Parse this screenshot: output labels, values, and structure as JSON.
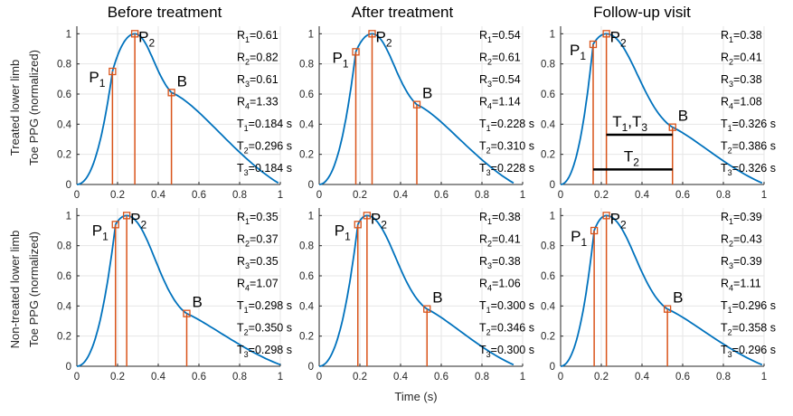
{
  "figure": {
    "xlabel": "Time (s)",
    "columns": [
      "Before treatment",
      "After treatment",
      "Follow-up visit"
    ],
    "row_labels": [
      [
        "Treated lower limb",
        "Toe PPG (normalized)"
      ],
      [
        "Non-treated lower limb",
        "Toe PPG (normalized)"
      ]
    ]
  },
  "chart_data": [
    {
      "type": "line",
      "row": 0,
      "col": 0,
      "title": "Before treatment",
      "xlim": [
        0,
        1
      ],
      "ylim": [
        0,
        1.05
      ],
      "xticks": [
        0,
        0.2,
        0.4,
        0.6,
        0.8,
        1
      ],
      "yticks": [
        0,
        0.2,
        0.4,
        0.6,
        0.8,
        1
      ],
      "grid": true,
      "line_color": "#0072BD",
      "marker_color": "#D95319",
      "keypoints": [
        {
          "name": "P",
          "sub": "1",
          "x": 0.175,
          "y": 0.75
        },
        {
          "name": "P",
          "sub": "2",
          "x": 0.285,
          "y": 1.0
        },
        {
          "name": "B",
          "sub": "",
          "x": 0.465,
          "y": 0.61
        }
      ],
      "end_x": 0.99,
      "annotations": [
        {
          "name": "R",
          "sub": "1",
          "value": "=0.61"
        },
        {
          "name": "R",
          "sub": "2",
          "value": "=0.82"
        },
        {
          "name": "R",
          "sub": "3",
          "value": "=0.61"
        },
        {
          "name": "R",
          "sub": "4",
          "value": "=1.33"
        },
        {
          "name": "T",
          "sub": "1",
          "value": "=0.184 s"
        },
        {
          "name": "T",
          "sub": "2",
          "value": "=0.296 s"
        },
        {
          "name": "T",
          "sub": "3",
          "value": "=0.184 s"
        }
      ]
    },
    {
      "type": "line",
      "row": 0,
      "col": 1,
      "title": "After treatment",
      "xlim": [
        0,
        1
      ],
      "ylim": [
        0,
        1.05
      ],
      "xticks": [
        0,
        0.2,
        0.4,
        0.6,
        0.8,
        1
      ],
      "yticks": [
        0,
        0.2,
        0.4,
        0.6,
        0.8,
        1
      ],
      "grid": true,
      "line_color": "#0072BD",
      "marker_color": "#D95319",
      "keypoints": [
        {
          "name": "P",
          "sub": "1",
          "x": 0.18,
          "y": 0.88
        },
        {
          "name": "P",
          "sub": "2",
          "x": 0.26,
          "y": 1.0
        },
        {
          "name": "B",
          "sub": "",
          "x": 0.48,
          "y": 0.53
        }
      ],
      "end_x": 0.955,
      "annotations": [
        {
          "name": "R",
          "sub": "1",
          "value": "=0.54"
        },
        {
          "name": "R",
          "sub": "2",
          "value": "=0.61"
        },
        {
          "name": "R",
          "sub": "3",
          "value": "=0.54"
        },
        {
          "name": "R",
          "sub": "4",
          "value": "=1.14"
        },
        {
          "name": "T",
          "sub": "1",
          "value": "=0.228 s"
        },
        {
          "name": "T",
          "sub": "2",
          "value": "=0.310 s"
        },
        {
          "name": "T",
          "sub": "3",
          "value": "=0.228 s"
        }
      ]
    },
    {
      "type": "line",
      "row": 0,
      "col": 2,
      "title": "Follow-up visit",
      "xlim": [
        0,
        1
      ],
      "ylim": [
        0,
        1.05
      ],
      "xticks": [
        0,
        0.2,
        0.4,
        0.6,
        0.8,
        1
      ],
      "yticks": [
        0,
        0.2,
        0.4,
        0.6,
        0.8,
        1
      ],
      "grid": true,
      "line_color": "#0072BD",
      "marker_color": "#D95319",
      "keypoints": [
        {
          "name": "P",
          "sub": "1",
          "x": 0.16,
          "y": 0.93
        },
        {
          "name": "P",
          "sub": "2",
          "x": 0.225,
          "y": 1.0
        },
        {
          "name": "B",
          "sub": "",
          "x": 0.55,
          "y": 0.38
        }
      ],
      "end_x": 0.99,
      "intervals": [
        {
          "name": "T",
          "sub": "1",
          "name2": "T",
          "sub2": "3",
          "x0": 0.225,
          "x1": 0.55,
          "y": 0.33
        },
        {
          "name": "T",
          "sub": "2",
          "x0": 0.16,
          "x1": 0.55,
          "y": 0.1
        }
      ],
      "annotations": [
        {
          "name": "R",
          "sub": "1",
          "value": "=0.38"
        },
        {
          "name": "R",
          "sub": "2",
          "value": "=0.41"
        },
        {
          "name": "R",
          "sub": "3",
          "value": "=0.38"
        },
        {
          "name": "R",
          "sub": "4",
          "value": "=1.08"
        },
        {
          "name": "T",
          "sub": "1",
          "value": "=0.326 s"
        },
        {
          "name": "T",
          "sub": "2",
          "value": "=0.386 s"
        },
        {
          "name": "T",
          "sub": "3",
          "value": "=0.326 s"
        }
      ]
    },
    {
      "type": "line",
      "row": 1,
      "col": 0,
      "title": "",
      "xlim": [
        0,
        1
      ],
      "ylim": [
        0,
        1.05
      ],
      "xticks": [
        0,
        0.2,
        0.4,
        0.6,
        0.8,
        1
      ],
      "yticks": [
        0,
        0.2,
        0.4,
        0.6,
        0.8,
        1
      ],
      "grid": true,
      "line_color": "#0072BD",
      "marker_color": "#D95319",
      "keypoints": [
        {
          "name": "P",
          "sub": "1",
          "x": 0.19,
          "y": 0.94
        },
        {
          "name": "P",
          "sub": "2",
          "x": 0.245,
          "y": 1.0
        },
        {
          "name": "B",
          "sub": "",
          "x": 0.54,
          "y": 0.35
        }
      ],
      "end_x": 1.0,
      "annotations": [
        {
          "name": "R",
          "sub": "1",
          "value": "=0.35"
        },
        {
          "name": "R",
          "sub": "2",
          "value": "=0.37"
        },
        {
          "name": "R",
          "sub": "3",
          "value": "=0.35"
        },
        {
          "name": "R",
          "sub": "4",
          "value": "=1.07"
        },
        {
          "name": "T",
          "sub": "1",
          "value": "=0.298 s"
        },
        {
          "name": "T",
          "sub": "2",
          "value": "=0.350 s"
        },
        {
          "name": "T",
          "sub": "3",
          "value": "=0.298 s"
        }
      ]
    },
    {
      "type": "line",
      "row": 1,
      "col": 1,
      "title": "",
      "xlim": [
        0,
        1
      ],
      "ylim": [
        0,
        1.05
      ],
      "xticks": [
        0,
        0.2,
        0.4,
        0.6,
        0.8,
        1
      ],
      "yticks": [
        0,
        0.2,
        0.4,
        0.6,
        0.8,
        1
      ],
      "grid": true,
      "line_color": "#0072BD",
      "marker_color": "#D95319",
      "keypoints": [
        {
          "name": "P",
          "sub": "1",
          "x": 0.19,
          "y": 0.94
        },
        {
          "name": "P",
          "sub": "2",
          "x": 0.235,
          "y": 1.0
        },
        {
          "name": "B",
          "sub": "",
          "x": 0.53,
          "y": 0.38
        }
      ],
      "end_x": 0.955,
      "annotations": [
        {
          "name": "R",
          "sub": "1",
          "value": "=0.38"
        },
        {
          "name": "R",
          "sub": "2",
          "value": "=0.41"
        },
        {
          "name": "R",
          "sub": "3",
          "value": "=0.38"
        },
        {
          "name": "R",
          "sub": "4",
          "value": "=1.06"
        },
        {
          "name": "T",
          "sub": "1",
          "value": "=0.300 s"
        },
        {
          "name": "T",
          "sub": "2",
          "value": "=0.346 s"
        },
        {
          "name": "T",
          "sub": "3",
          "value": "=0.300 s"
        }
      ]
    },
    {
      "type": "line",
      "row": 1,
      "col": 2,
      "title": "",
      "xlim": [
        0,
        1
      ],
      "ylim": [
        0,
        1.05
      ],
      "xticks": [
        0,
        0.2,
        0.4,
        0.6,
        0.8,
        1
      ],
      "yticks": [
        0,
        0.2,
        0.4,
        0.6,
        0.8,
        1
      ],
      "grid": true,
      "line_color": "#0072BD",
      "marker_color": "#D95319",
      "keypoints": [
        {
          "name": "P",
          "sub": "1",
          "x": 0.165,
          "y": 0.9
        },
        {
          "name": "P",
          "sub": "2",
          "x": 0.225,
          "y": 1.0
        },
        {
          "name": "B",
          "sub": "",
          "x": 0.525,
          "y": 0.38
        }
      ],
      "end_x": 0.99,
      "annotations": [
        {
          "name": "R",
          "sub": "1",
          "value": "=0.39"
        },
        {
          "name": "R",
          "sub": "2",
          "value": "=0.43"
        },
        {
          "name": "R",
          "sub": "3",
          "value": "=0.39"
        },
        {
          "name": "R",
          "sub": "4",
          "value": "=1.11"
        },
        {
          "name": "T",
          "sub": "1",
          "value": "=0.296 s"
        },
        {
          "name": "T",
          "sub": "2",
          "value": "=0.358 s"
        },
        {
          "name": "T",
          "sub": "3",
          "value": "=0.296 s"
        }
      ]
    }
  ]
}
